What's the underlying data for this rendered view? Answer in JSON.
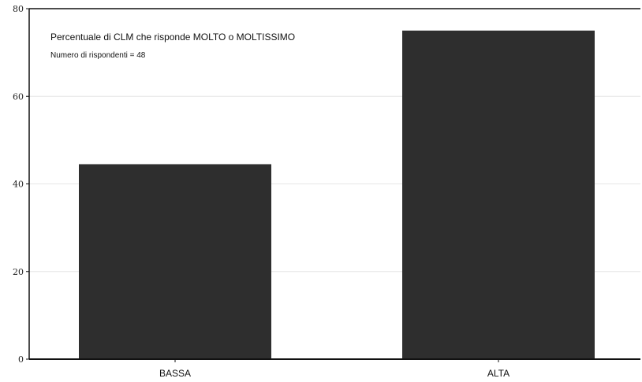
{
  "chart_data": {
    "type": "bar",
    "title": "Percentuale di CLM che risponde MOLTO o MOLTISSIMO",
    "subtitle": "Numero di rispondenti = 48",
    "categories": [
      "BASSA",
      "ALTA"
    ],
    "values": [
      44.5,
      75
    ],
    "ylim": [
      0,
      80
    ],
    "yticks": [
      0,
      20,
      40,
      60,
      80
    ],
    "grid": true,
    "bar_color": "#2e2e2e",
    "grid_color": "#e6e6e6"
  }
}
